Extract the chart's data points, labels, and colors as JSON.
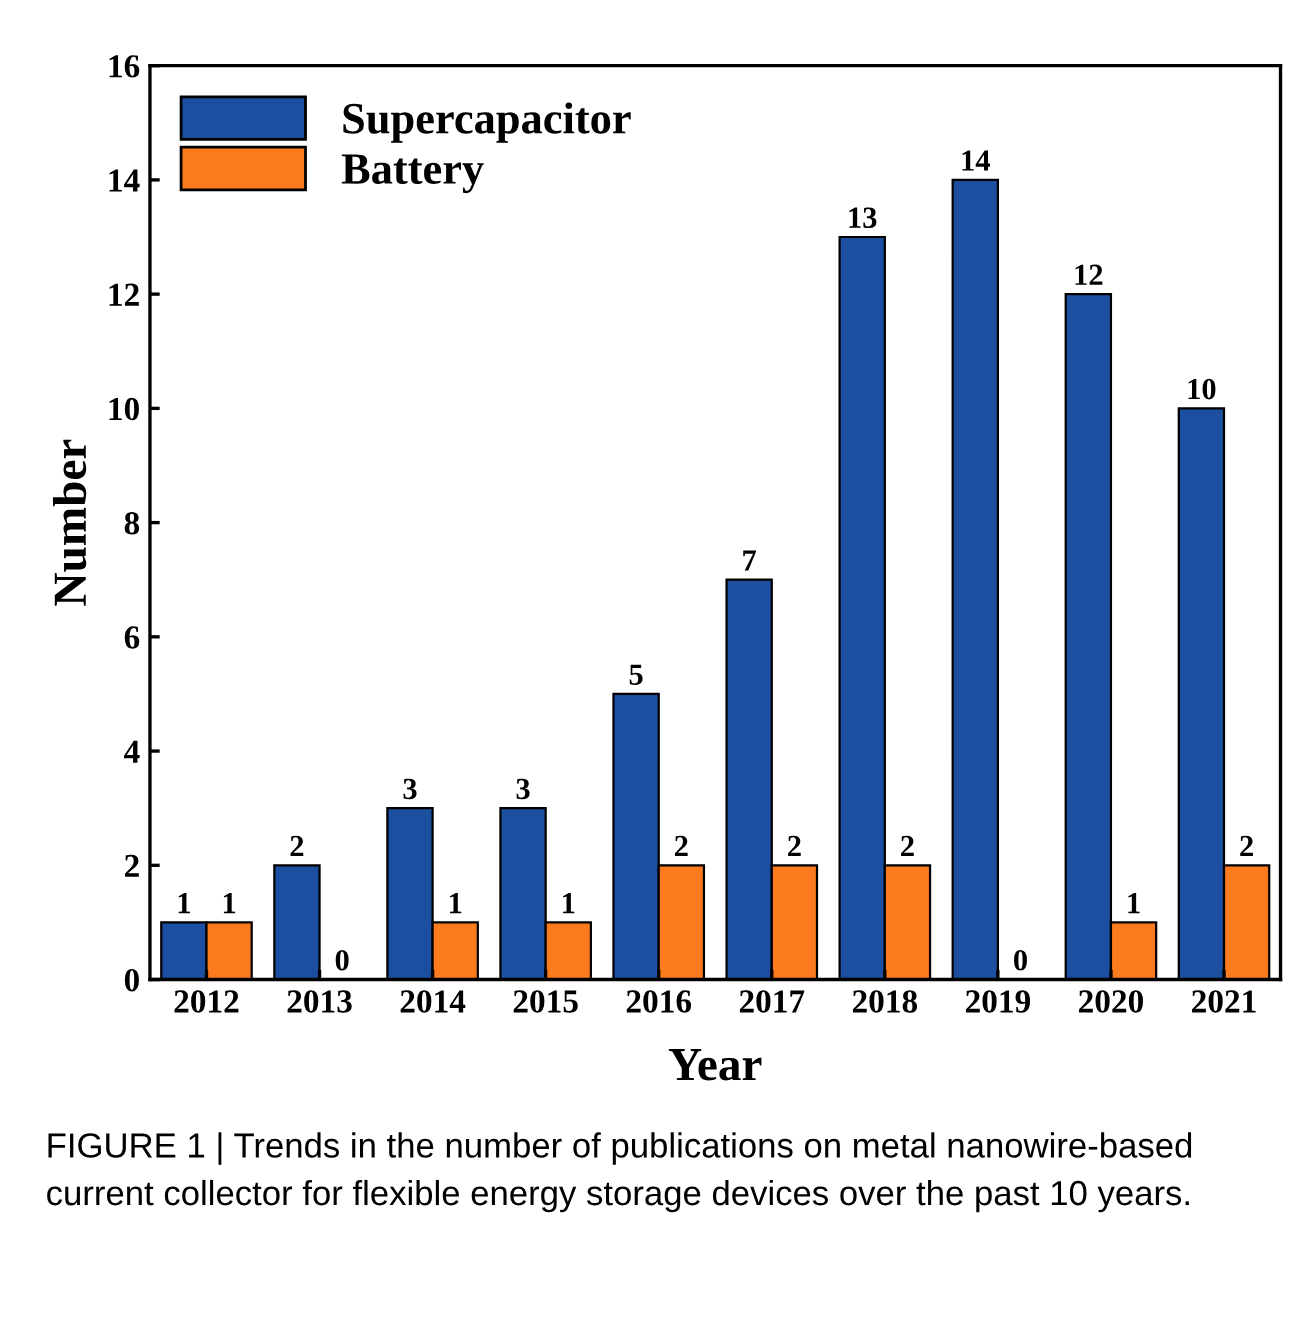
{
  "chart_data": {
    "type": "bar",
    "xlabel": "Year",
    "ylabel": "Number",
    "categories": [
      "2012",
      "2013",
      "2014",
      "2015",
      "2016",
      "2017",
      "2018",
      "2019",
      "2020",
      "2021"
    ],
    "series": [
      {
        "name": "Supercapacitor",
        "color": "#1c4f9f",
        "values": [
          1,
          2,
          3,
          3,
          5,
          7,
          13,
          14,
          12,
          10
        ]
      },
      {
        "name": "Battery",
        "color": "#fb7b1e",
        "values": [
          1,
          0,
          1,
          1,
          2,
          2,
          2,
          0,
          1,
          2
        ]
      }
    ],
    "ylim": [
      0,
      16
    ],
    "yticks": [
      0,
      2,
      4,
      6,
      8,
      10,
      12,
      14,
      16
    ],
    "grid": false,
    "legend": "top left",
    "data_labels": true,
    "annotations": [
      "FIGURE 1 | Trends in the number of publications on metal nanowire-based current collector for flexible energy storage devices over the past 10 years."
    ]
  }
}
